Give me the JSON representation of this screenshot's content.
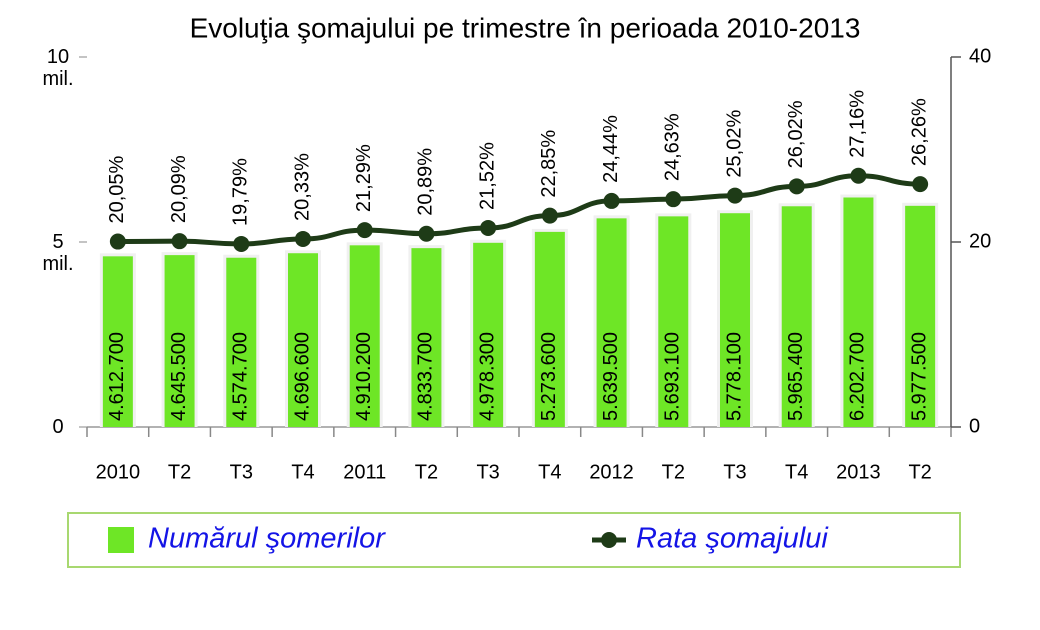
{
  "chart_data": {
    "type": "bar_line",
    "title": "Evoluţia şomajului pe trimestre în perioada 2010-2013",
    "categories": [
      "2010",
      "T2",
      "T3",
      "T4",
      "2011",
      "T2",
      "T3",
      "T4",
      "2012",
      "T2",
      "T3",
      "T4",
      "2013",
      "T2"
    ],
    "series": [
      {
        "name": "Numărul şomerilor",
        "type": "bar",
        "color": "#6ee626",
        "values": [
          4612700,
          4645500,
          4574700,
          4696600,
          4910200,
          4833700,
          4978300,
          5273600,
          5639500,
          5693100,
          5778100,
          5965400,
          6202700,
          5977500
        ],
        "value_labels": [
          "4.612.700",
          "4.645.500",
          "4.574.700",
          "4.696.600",
          "4.910.200",
          "4.833.700",
          "4.978.300",
          "5.273.600",
          "5.639.500",
          "5.693.100",
          "5.778.100",
          "5.965.400",
          "6.202.700",
          "5.977.500"
        ]
      },
      {
        "name": "Rata şomajului",
        "type": "line",
        "axis": "y2",
        "color": "#1e3b17",
        "values": [
          20.05,
          20.09,
          19.79,
          20.33,
          21.29,
          20.89,
          21.52,
          22.85,
          24.44,
          24.63,
          25.02,
          26.02,
          27.16,
          26.26
        ],
        "value_labels": [
          "20,05%",
          "20,09%",
          "19,79%",
          "20,33%",
          "21,29%",
          "20,89%",
          "21,52%",
          "22,85%",
          "24,44%",
          "24,63%",
          "25,02%",
          "26,02%",
          "27,16%",
          "26,26%"
        ]
      }
    ],
    "ylim": [
      0,
      10000000
    ],
    "yticks": [
      0,
      {
        "value": 5000000,
        "label": "5 mil."
      },
      {
        "value": 10000000,
        "label": "10 mil."
      }
    ],
    "y2lim": [
      0,
      40
    ],
    "y2ticks": [
      0,
      20,
      40
    ],
    "legend": "bottom"
  }
}
